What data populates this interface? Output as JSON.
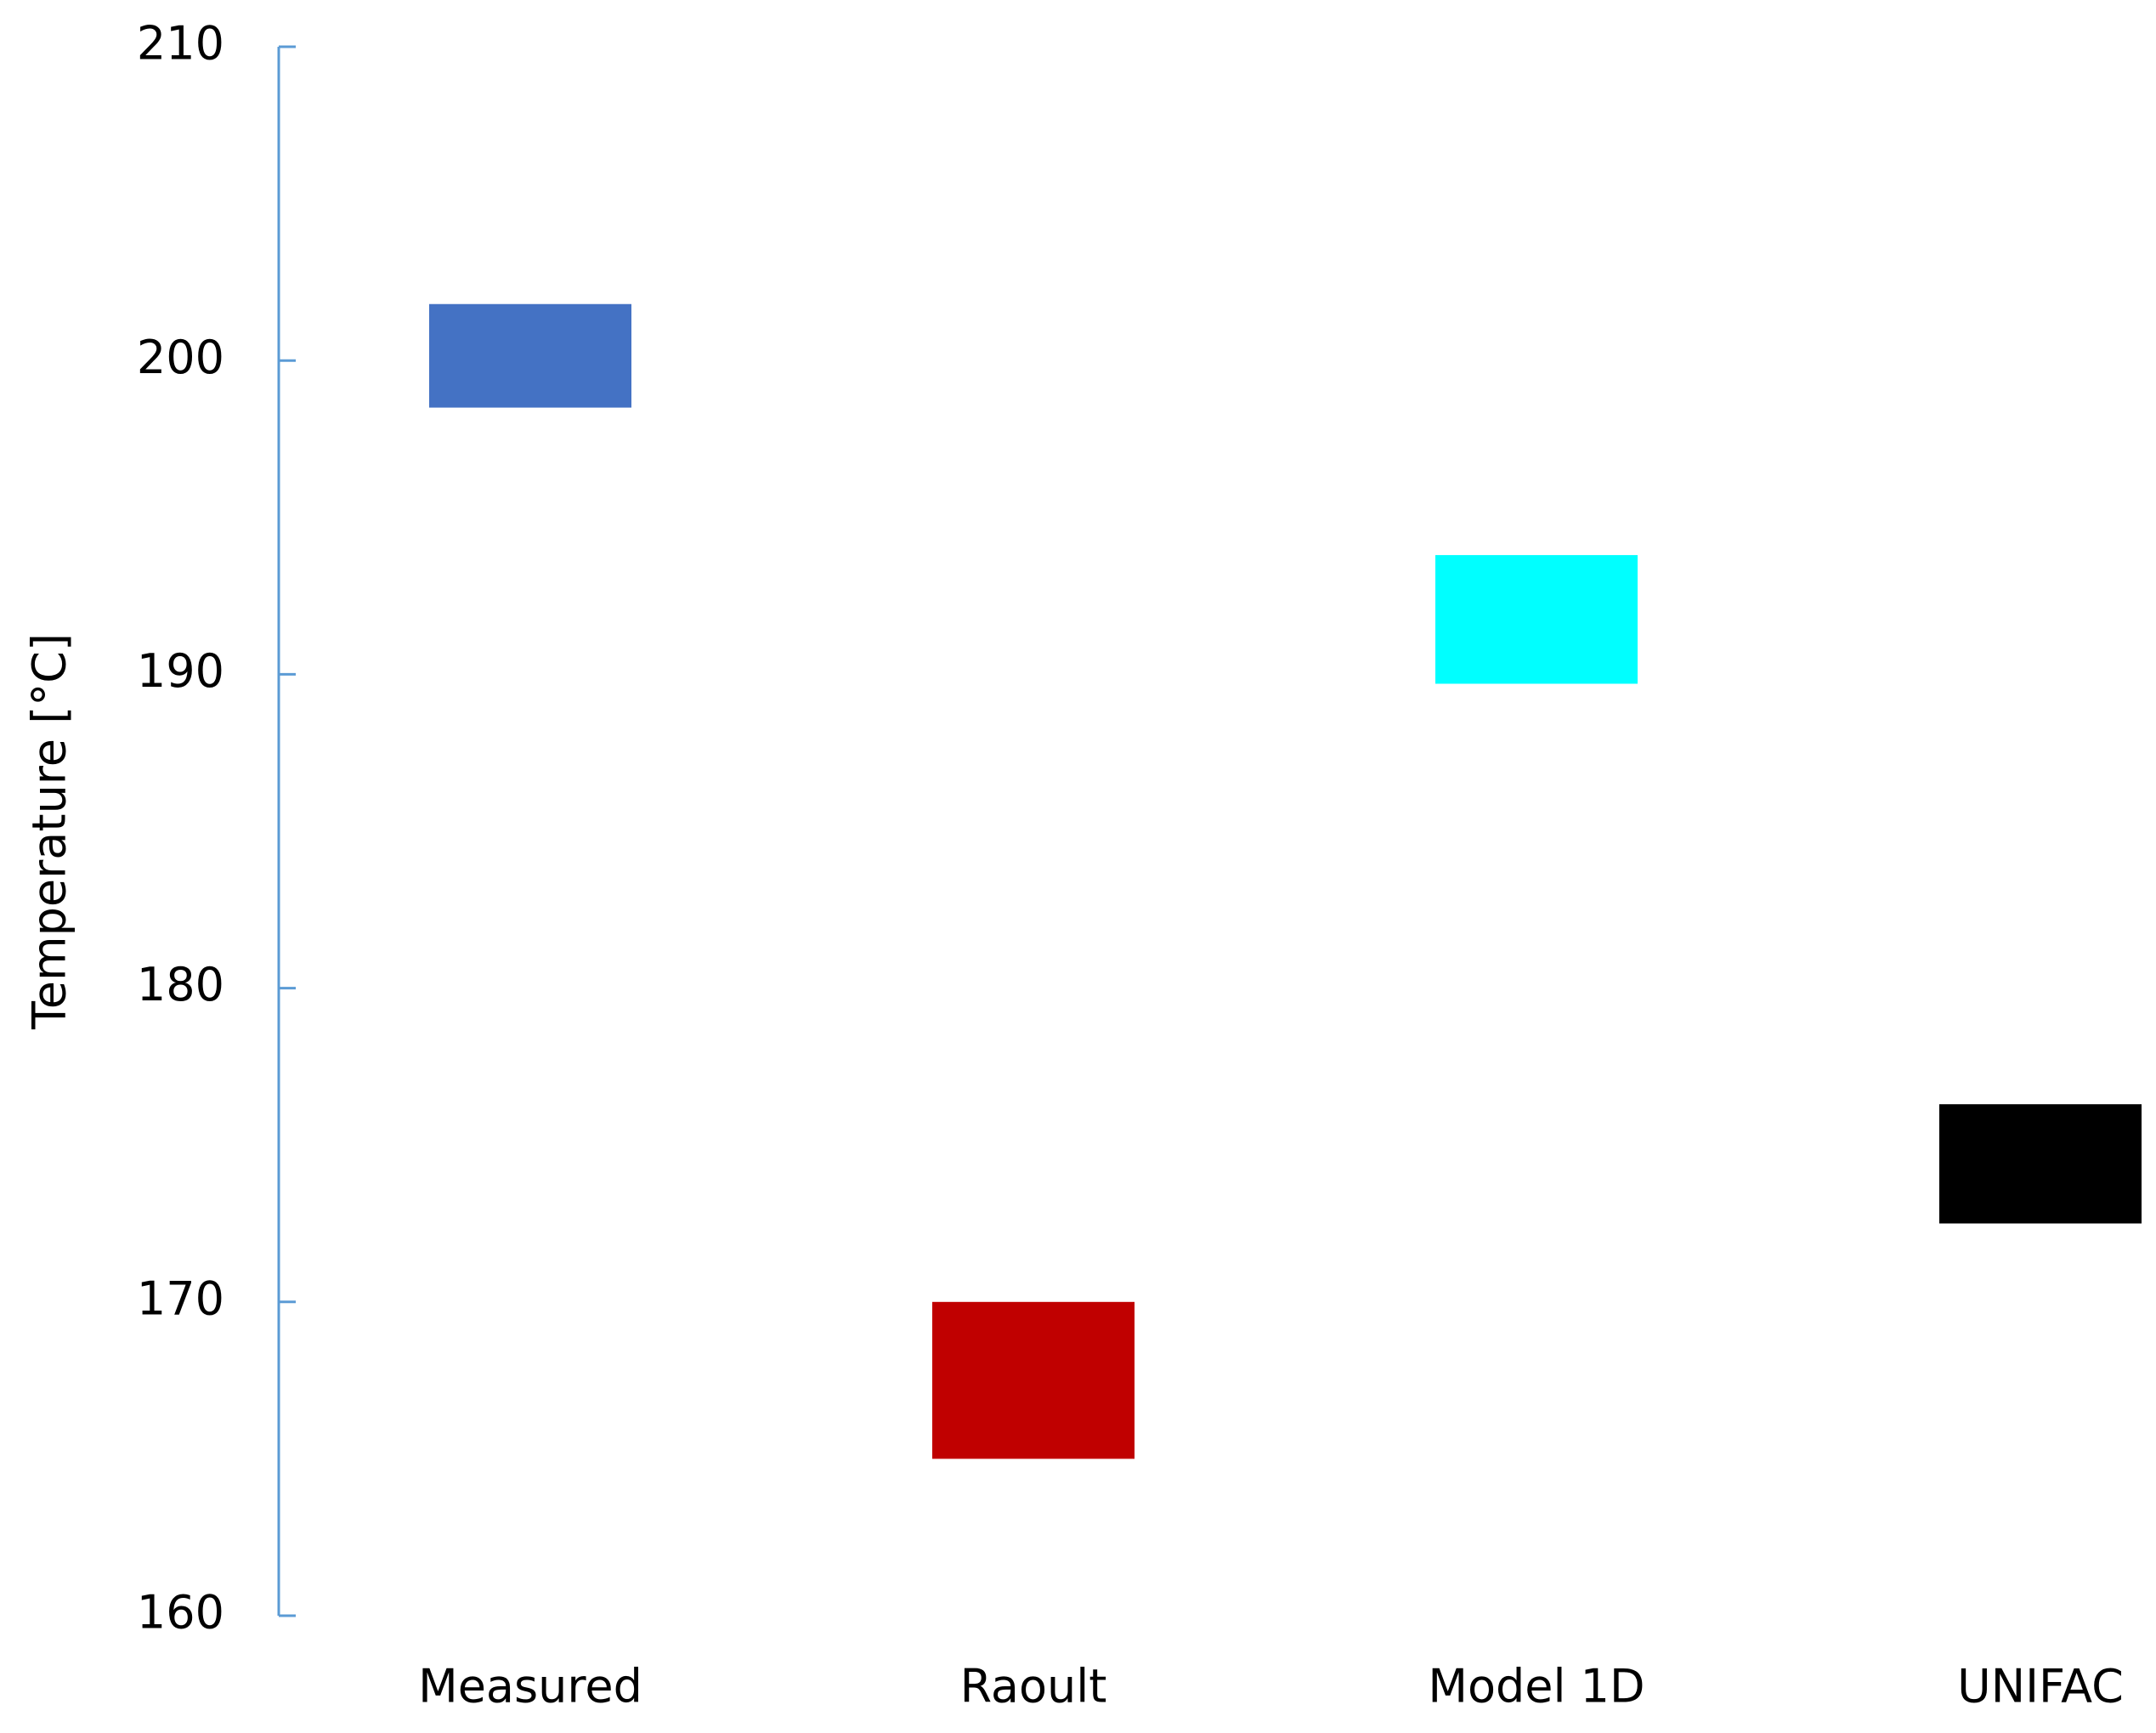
{
  "chart_data": {
    "type": "floating-bar",
    "y_label": "Temperature [°C]",
    "categories": [
      "Measured",
      "Raoult",
      "Model 1D",
      "UNIFAC"
    ],
    "low": [
      198.5,
      165,
      189.7,
      172.5
    ],
    "high": [
      201.8,
      170,
      193.8,
      176.3
    ],
    "colors": [
      "#4472c4",
      "#c00000",
      "#00ffff",
      "#000000"
    ],
    "axis_color": "#5b9bd5",
    "ylim": [
      160,
      210
    ],
    "yticks": [
      160,
      170,
      180,
      190,
      200,
      210
    ],
    "grid": false
  }
}
